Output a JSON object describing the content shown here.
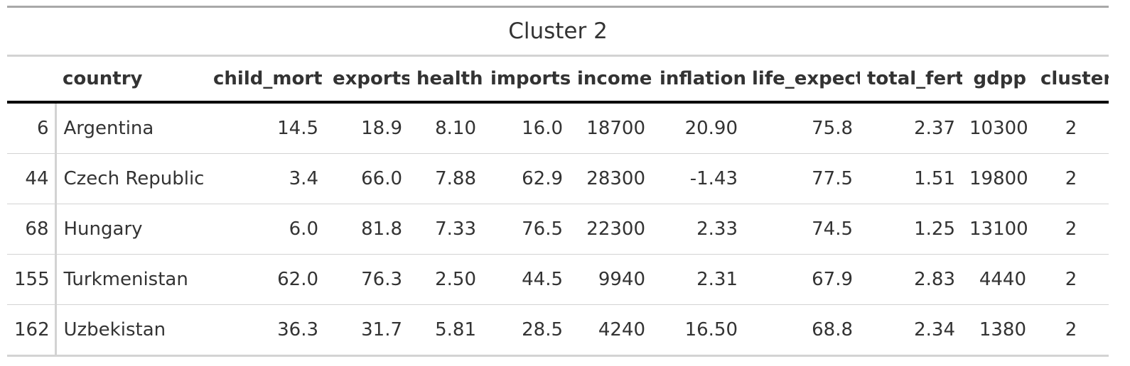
{
  "table": {
    "title": "Cluster 2",
    "columns": {
      "rowname": "",
      "country": "country",
      "child_mort": "child_mort",
      "exports": "exports",
      "health": "health",
      "imports": "imports",
      "income": "income",
      "inflation": "inflation",
      "life_expect": "life_expect",
      "total_fert": "total_fert",
      "gdpp": "gdpp",
      "cluster": "cluster"
    },
    "rows": [
      {
        "rowname": "6",
        "country": "Argentina",
        "child_mort": "14.5",
        "exports": "18.9",
        "health": "8.10",
        "imports": "16.0",
        "income": "18700",
        "inflation": "20.90",
        "life_expect": "75.8",
        "total_fert": "2.37",
        "gdpp": "10300",
        "cluster": "2"
      },
      {
        "rowname": "44",
        "country": "Czech Republic",
        "child_mort": "3.4",
        "exports": "66.0",
        "health": "7.88",
        "imports": "62.9",
        "income": "28300",
        "inflation": "-1.43",
        "life_expect": "77.5",
        "total_fert": "1.51",
        "gdpp": "19800",
        "cluster": "2"
      },
      {
        "rowname": "68",
        "country": "Hungary",
        "child_mort": "6.0",
        "exports": "81.8",
        "health": "7.33",
        "imports": "76.5",
        "income": "22300",
        "inflation": "2.33",
        "life_expect": "74.5",
        "total_fert": "1.25",
        "gdpp": "13100",
        "cluster": "2"
      },
      {
        "rowname": "155",
        "country": "Turkmenistan",
        "child_mort": "62.0",
        "exports": "76.3",
        "health": "2.50",
        "imports": "44.5",
        "income": "9940",
        "inflation": "2.31",
        "life_expect": "67.9",
        "total_fert": "2.83",
        "gdpp": "4440",
        "cluster": "2"
      },
      {
        "rowname": "162",
        "country": "Uzbekistan",
        "child_mort": "36.3",
        "exports": "31.7",
        "health": "5.81",
        "imports": "28.5",
        "income": "4240",
        "inflation": "16.50",
        "life_expect": "68.8",
        "total_fert": "2.34",
        "gdpp": "1380",
        "cluster": "2"
      }
    ]
  }
}
